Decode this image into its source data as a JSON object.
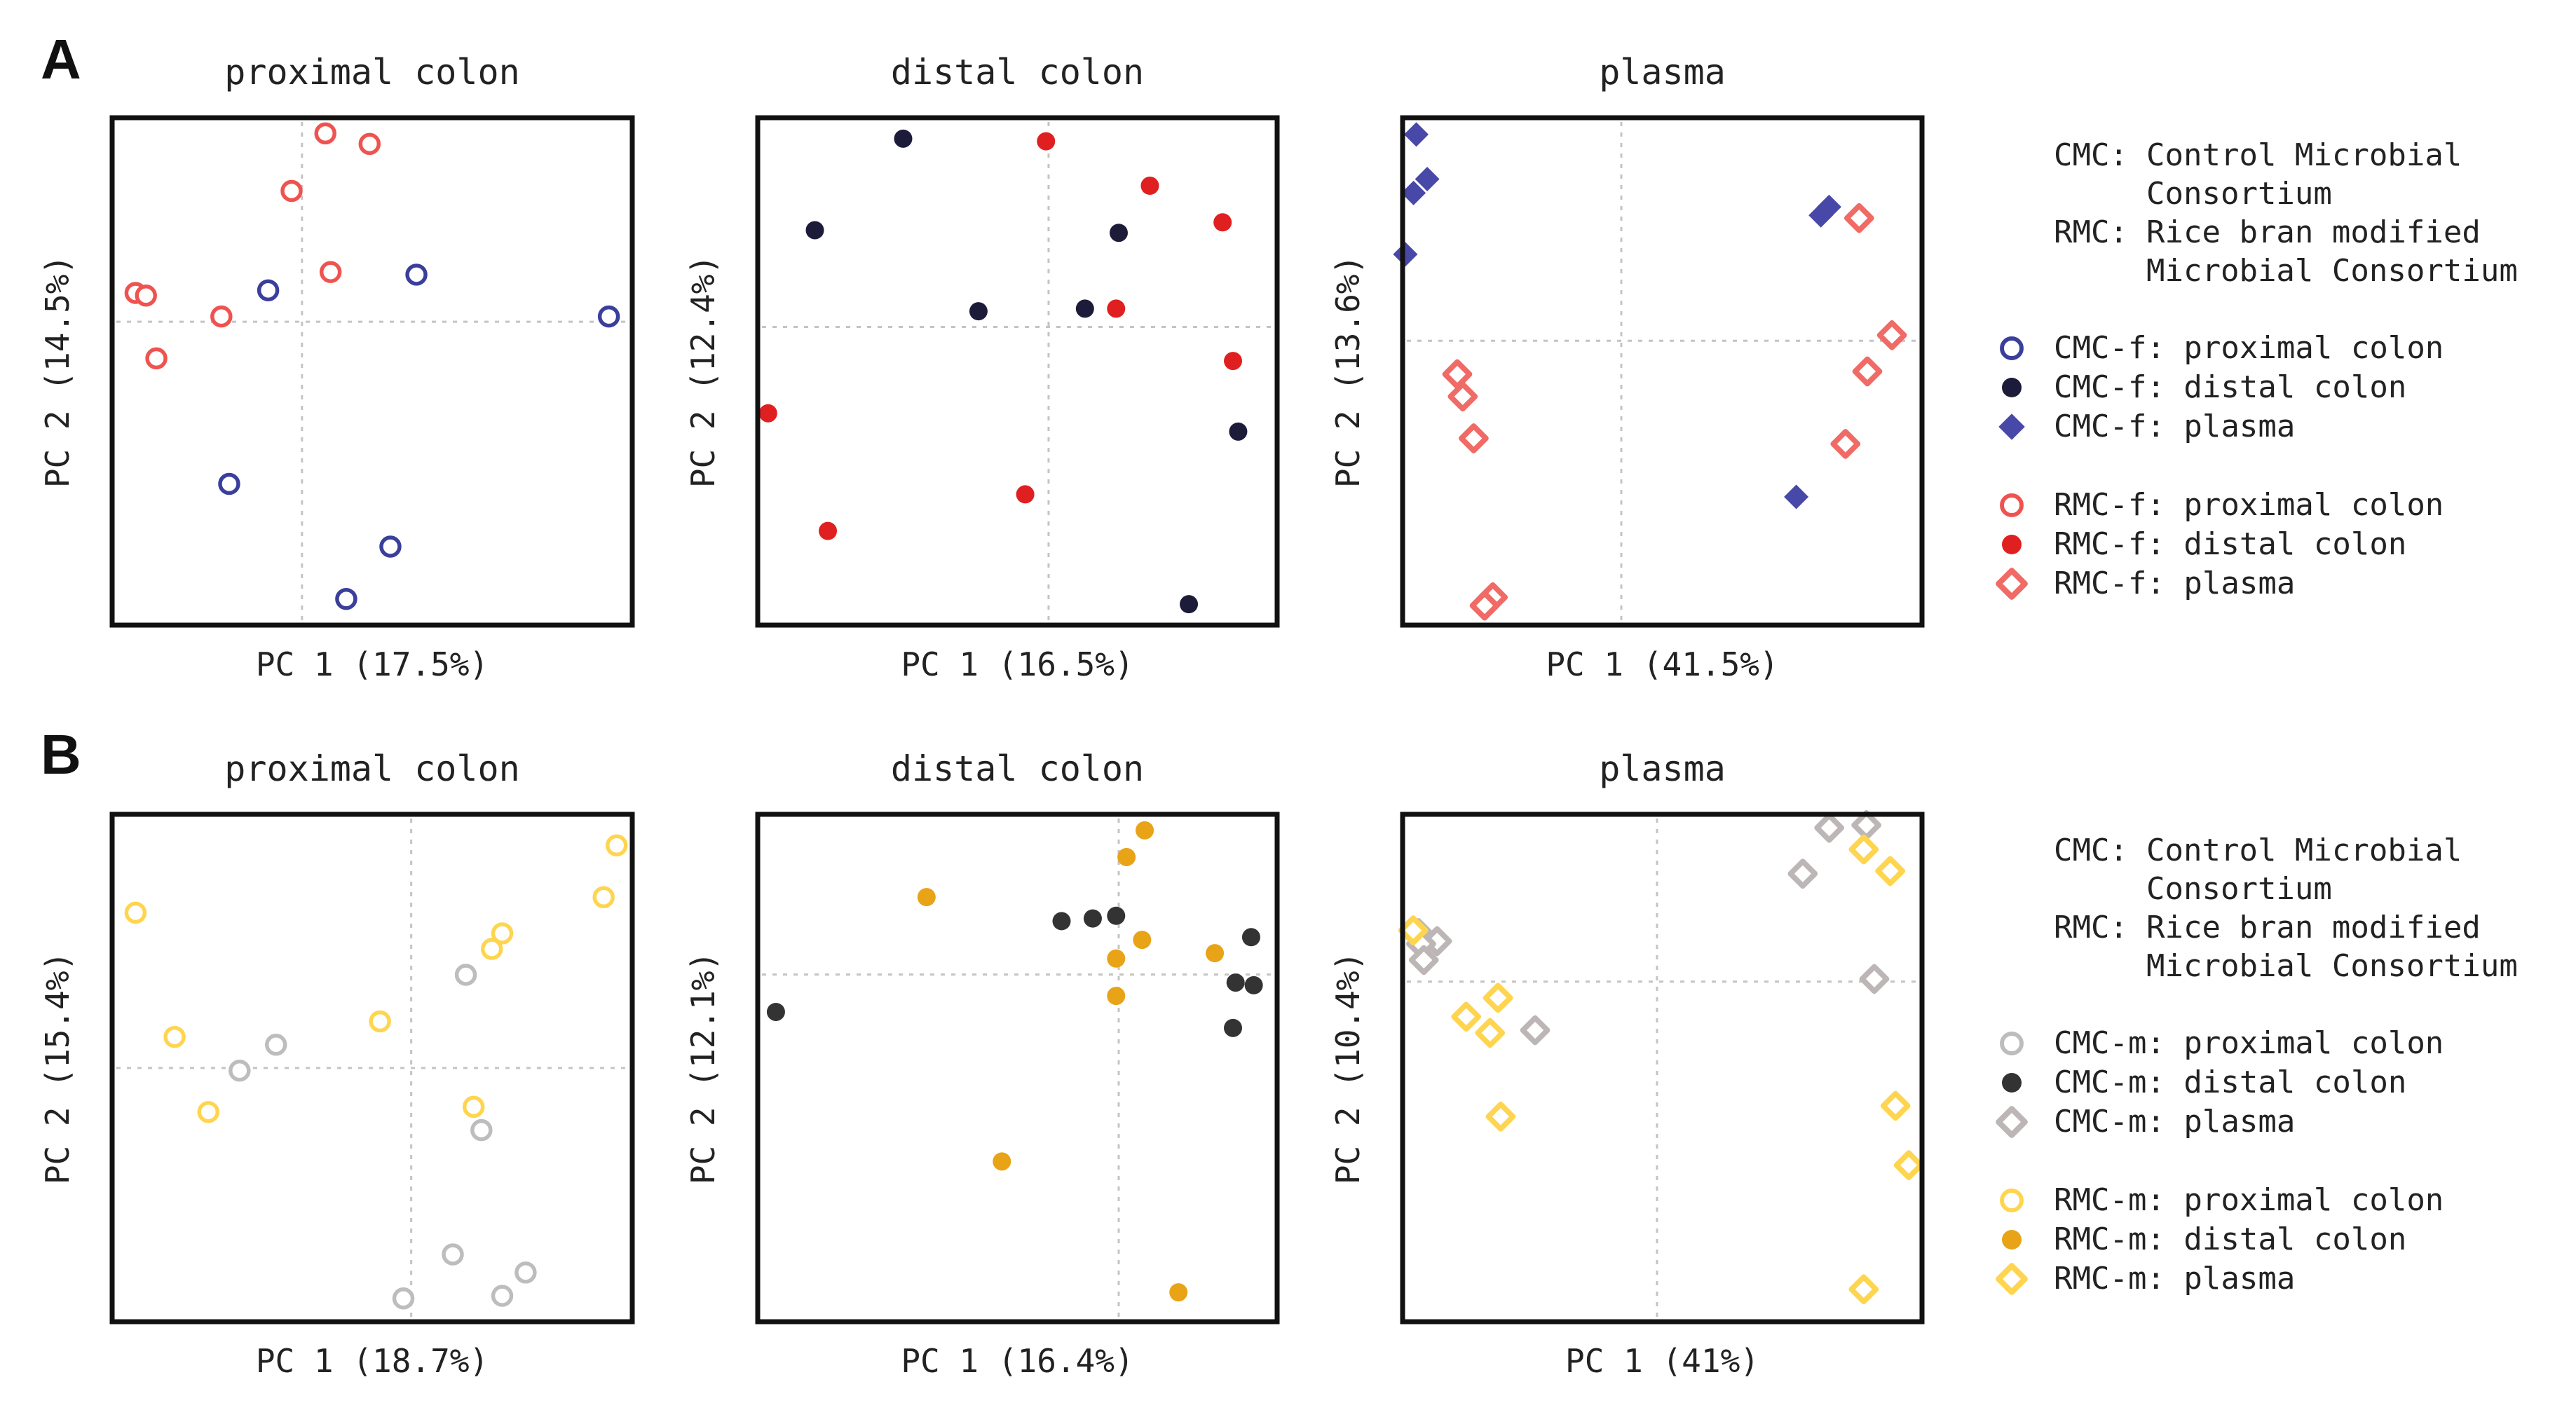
{
  "figure_labels": [
    "A",
    "B"
  ],
  "colors": {
    "cmc_f_proximal": "#3a3f9c",
    "cmc_f_distal": "#1c1c3a",
    "cmc_f_plasma": "#4848a8",
    "rmc_f_proximal": "#ef5350",
    "rmc_f_distal": "#e02020",
    "rmc_f_plasma": "#f06a66",
    "cmc_m_proximal": "#bdbdbd",
    "cmc_m_distal": "#333333",
    "cmc_m_plasma": "#bdb6b6",
    "rmc_m_proximal": "#ffd54f",
    "rmc_m_distal": "#e8a317",
    "rmc_m_plasma": "#ffd54f"
  },
  "legends": [
    {
      "definitions": [
        [
          "CMC:",
          "Control Microbial"
        ],
        [
          "",
          "Consortium"
        ],
        [
          "RMC:",
          "Rice bran modified"
        ],
        [
          "",
          "Microbial Consortium"
        ]
      ],
      "entries": [
        {
          "label": "CMC-f: proximal colon",
          "marker": "circle-open",
          "color_key": "cmc_f_proximal"
        },
        {
          "label": "CMC-f: distal colon",
          "marker": "circle-filled",
          "color_key": "cmc_f_distal"
        },
        {
          "label": "CMC-f: plasma",
          "marker": "diamond-filled",
          "color_key": "cmc_f_plasma"
        },
        {
          "label": "RMC-f: proximal colon",
          "marker": "circle-open",
          "color_key": "rmc_f_proximal"
        },
        {
          "label": "RMC-f: distal colon",
          "marker": "circle-filled",
          "color_key": "rmc_f_distal"
        },
        {
          "label": "RMC-f: plasma",
          "marker": "diamond-open",
          "color_key": "rmc_f_plasma"
        }
      ]
    },
    {
      "definitions": [
        [
          "CMC:",
          "Control Microbial"
        ],
        [
          "",
          "Consortium"
        ],
        [
          "RMC:",
          "Rice bran modified"
        ],
        [
          "",
          "Microbial Consortium"
        ]
      ],
      "entries": [
        {
          "label": "CMC-m: proximal colon",
          "marker": "circle-open",
          "color_key": "cmc_m_proximal"
        },
        {
          "label": "CMC-m: distal colon",
          "marker": "circle-filled",
          "color_key": "cmc_m_distal"
        },
        {
          "label": "CMC-m: plasma",
          "marker": "diamond-open",
          "color_key": "cmc_m_plasma"
        },
        {
          "label": "RMC-m: proximal colon",
          "marker": "circle-open",
          "color_key": "rmc_m_proximal"
        },
        {
          "label": "RMC-m: distal colon",
          "marker": "circle-filled",
          "color_key": "rmc_m_distal"
        },
        {
          "label": "RMC-m: plasma",
          "marker": "diamond-open",
          "color_key": "rmc_m_plasma"
        }
      ]
    }
  ],
  "chart_data": [
    {
      "type": "scatter",
      "panel": "A",
      "title": "proximal colon",
      "xlabel": "PC 1 (17.5%)",
      "ylabel": "PC 2 (14.5%)",
      "xlim": [
        -3.65,
        6.35
      ],
      "ylim": [
        -5.8,
        3.9
      ],
      "grid": "zero-lines",
      "series": [
        {
          "name": "CMC-f: proximal colon",
          "color_key": "cmc_f_proximal",
          "marker": "circle-open",
          "x": [
            -0.65,
            2.2,
            5.9,
            -1.4,
            1.7,
            0.85
          ],
          "y": [
            0.6,
            0.9,
            0.1,
            -3.1,
            -4.3,
            -5.3
          ]
        },
        {
          "name": "RMC-f: proximal colon",
          "color_key": "rmc_f_proximal",
          "marker": "circle-open",
          "x": [
            0.45,
            1.3,
            -0.2,
            0.55,
            -3.2,
            -3.0,
            -1.55,
            -2.8
          ],
          "y": [
            3.6,
            3.4,
            2.5,
            0.95,
            0.55,
            0.5,
            0.1,
            -0.7
          ]
        }
      ]
    },
    {
      "type": "scatter",
      "panel": "A",
      "title": "distal colon",
      "xlabel": "PC 1 (16.5%)",
      "ylabel": "PC 2 (12.4%)",
      "xlim": [
        -5.6,
        4.4
      ],
      "ylim": [
        -5.7,
        4.0
      ],
      "grid": "zero-lines",
      "series": [
        {
          "name": "CMC-f: distal colon",
          "color_key": "cmc_f_distal",
          "marker": "circle-filled",
          "x": [
            -2.8,
            -4.5,
            1.35,
            -1.35,
            0.7,
            3.65,
            2.7
          ],
          "y": [
            3.6,
            1.85,
            1.8,
            0.3,
            0.35,
            -2.0,
            -5.3
          ]
        },
        {
          "name": "RMC-f: distal colon",
          "color_key": "rmc_f_distal",
          "marker": "circle-filled",
          "x": [
            -0.05,
            1.95,
            3.35,
            1.3,
            3.55,
            -5.4,
            -0.45,
            -4.25
          ],
          "y": [
            3.55,
            2.7,
            2.0,
            0.35,
            -0.65,
            -1.65,
            -3.2,
            -3.9
          ]
        }
      ]
    },
    {
      "type": "scatter",
      "panel": "A",
      "title": "plasma",
      "xlabel": "PC 1 (41.5%)",
      "ylabel": "PC 2 (13.6%)",
      "xlim": [
        -4.0,
        5.5
      ],
      "ylim": [
        -5.1,
        4.0
      ],
      "grid": "zero-lines",
      "series": [
        {
          "name": "CMC-f: plasma",
          "color_key": "cmc_f_plasma",
          "marker": "diamond-filled",
          "x": [
            -3.75,
            -3.55,
            -3.8,
            -3.95,
            3.8,
            3.65,
            3.2
          ],
          "y": [
            3.7,
            2.9,
            2.65,
            1.55,
            2.4,
            2.25,
            -2.8
          ]
        },
        {
          "name": "RMC-f: plasma",
          "color_key": "rmc_f_plasma",
          "marker": "diamond-open",
          "x": [
            4.35,
            4.95,
            4.5,
            4.1,
            -3.0,
            -2.9,
            -2.7,
            -2.35,
            -2.5
          ],
          "y": [
            2.2,
            0.1,
            -0.55,
            -1.85,
            -0.6,
            -1.0,
            -1.75,
            -4.6,
            -4.75
          ]
        }
      ]
    },
    {
      "type": "scatter",
      "panel": "B",
      "title": "proximal colon",
      "xlabel": "PC 1 (18.7%)",
      "ylabel": "PC 2 (15.4%)",
      "xlim": [
        -5.75,
        4.25
      ],
      "ylim": [
        -4.9,
        4.9
      ],
      "grid": "zero-lines",
      "series": [
        {
          "name": "CMC-m: proximal colon",
          "color_key": "cmc_m_proximal",
          "marker": "circle-open",
          "x": [
            1.05,
            -2.6,
            -3.3,
            1.35,
            0.8,
            2.2,
            1.75,
            -0.15
          ],
          "y": [
            1.8,
            0.45,
            -0.05,
            -1.2,
            -3.6,
            -3.95,
            -4.4,
            -4.45
          ]
        },
        {
          "name": "RMC-m: proximal colon",
          "color_key": "rmc_m_proximal",
          "marker": "circle-open",
          "x": [
            3.95,
            -5.3,
            3.7,
            1.75,
            1.55,
            -0.6,
            -4.55,
            1.2,
            -3.9
          ],
          "y": [
            4.3,
            3.0,
            3.3,
            2.6,
            2.3,
            0.9,
            0.6,
            -0.75,
            -0.85
          ]
        }
      ]
    },
    {
      "type": "scatter",
      "panel": "B",
      "title": "distal colon",
      "xlabel": "PC 1 (16.4%)",
      "ylabel": "PC 2 (12.1%)",
      "xlim": [
        -6.95,
        3.05
      ],
      "ylim": [
        -6.5,
        3.0
      ],
      "grid": "zero-lines",
      "series": [
        {
          "name": "CMC-m: distal colon",
          "color_key": "cmc_m_distal",
          "marker": "circle-filled",
          "x": [
            -1.1,
            -0.5,
            -0.05,
            2.55,
            2.25,
            2.6,
            -6.6,
            2.2
          ],
          "y": [
            1.0,
            1.05,
            1.1,
            0.7,
            -0.15,
            -0.2,
            -0.7,
            -1.0
          ]
        },
        {
          "name": "RMC-m: distal colon",
          "color_key": "rmc_m_distal",
          "marker": "circle-filled",
          "x": [
            0.5,
            0.15,
            -3.7,
            0.45,
            1.85,
            -0.05,
            -0.05,
            -2.25,
            1.15
          ],
          "y": [
            2.7,
            2.2,
            1.45,
            0.65,
            0.4,
            0.3,
            -0.4,
            -3.5,
            -5.95
          ]
        }
      ]
    },
    {
      "type": "scatter",
      "panel": "B",
      "title": "plasma",
      "xlabel": "PC 1 (41%)",
      "ylabel": "PC 2 (10.4%)",
      "xlim": [
        -4.8,
        5.0
      ],
      "ylim": [
        -6.3,
        3.1
      ],
      "grid": "zero-lines",
      "series": [
        {
          "name": "CMC-m: plasma",
          "color_key": "cmc_m_plasma",
          "marker": "diamond-open",
          "x": [
            3.25,
            3.95,
            2.75,
            -4.5,
            -4.15,
            -4.45,
            -4.4,
            4.1,
            -2.3
          ],
          "y": [
            2.85,
            2.9,
            2.0,
            0.9,
            0.75,
            0.7,
            0.4,
            0.05,
            -0.9
          ]
        },
        {
          "name": "RMC-m: plasma",
          "color_key": "rmc_m_plasma",
          "marker": "diamond-open",
          "x": [
            3.9,
            4.4,
            -4.6,
            -3.0,
            -3.6,
            -3.15,
            -2.95,
            4.5,
            4.75,
            3.9
          ],
          "y": [
            2.45,
            2.05,
            0.95,
            -0.3,
            -0.65,
            -0.95,
            -2.5,
            -2.3,
            -3.4,
            -5.7
          ]
        }
      ]
    }
  ]
}
